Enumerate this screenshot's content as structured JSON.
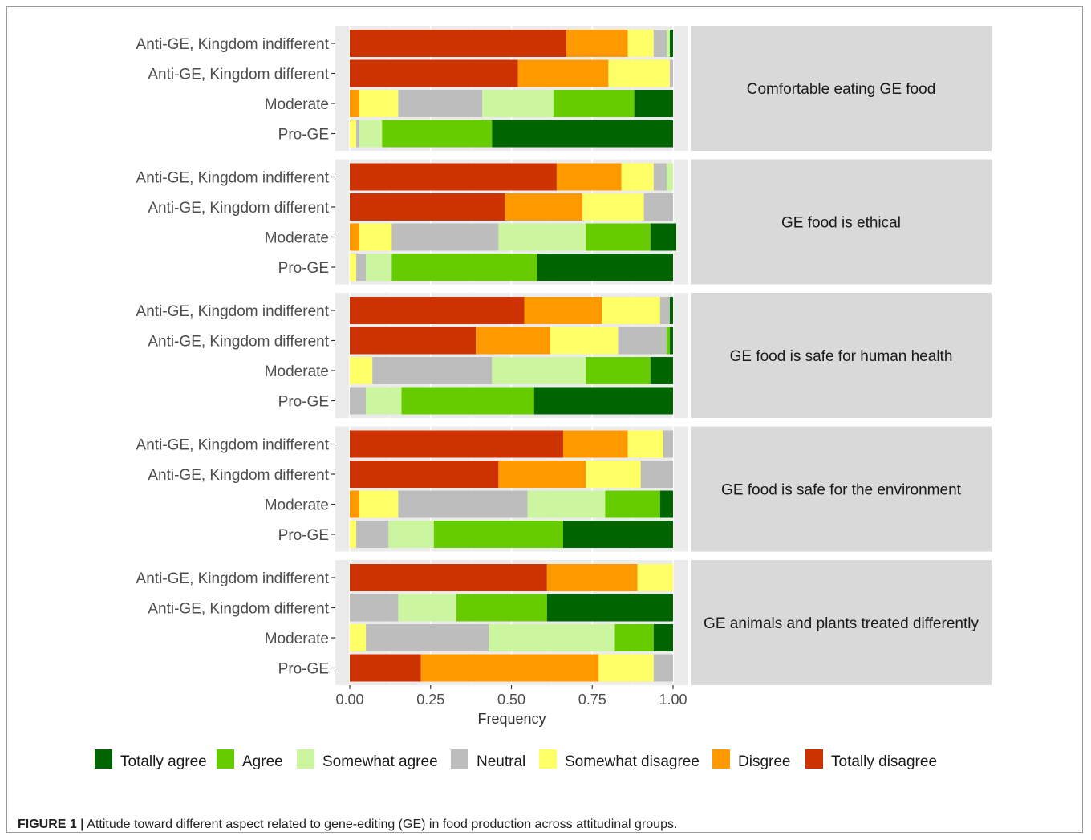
{
  "caption": {
    "label": "FIGURE 1 |",
    "text": "Attitude toward different aspect related to gene-editing (GE) in food production across attitudinal groups."
  },
  "chart_data": {
    "type": "bar",
    "orientation": "horizontal",
    "stacked": true,
    "xlabel": "Frequency",
    "xlim": [
      0,
      1
    ],
    "xticks": [
      "0.00",
      "0.25",
      "0.50",
      "0.75",
      "1.00"
    ],
    "grid": true,
    "legend_position": "bottom",
    "groups": [
      "Anti-GE, Kingdom indifferent",
      "Anti-GE, Kingdom different",
      "Moderate",
      "Pro-GE"
    ],
    "response_levels": [
      "Totally agree",
      "Agree",
      "Somewhat agree",
      "Neutral",
      "Somewhat disagree",
      "Disgree",
      "Totally disagree"
    ],
    "colors": {
      "Totally agree": "#006400",
      "Agree": "#66cc00",
      "Somewhat agree": "#ccf5a0",
      "Neutral": "#bdbdbd",
      "Somewhat disagree": "#ffff66",
      "Disgree": "#ff9900",
      "Totally disagree": "#cc3300"
    },
    "stack_order": [
      "Totally disagree",
      "Disgree",
      "Somewhat disagree",
      "Neutral",
      "Somewhat agree",
      "Agree",
      "Totally agree"
    ],
    "panels": [
      {
        "title": "Comfortable eating GE food",
        "bars": [
          {
            "group": "Anti-GE, Kingdom indifferent",
            "values": [
              0.67,
              0.19,
              0.08,
              0.04,
              0.01,
              0.0,
              0.01
            ]
          },
          {
            "group": "Anti-GE, Kingdom different",
            "values": [
              0.52,
              0.28,
              0.19,
              0.01,
              0.0,
              0.0,
              0.0
            ]
          },
          {
            "group": "Moderate",
            "values": [
              0.0,
              0.03,
              0.12,
              0.26,
              0.22,
              0.25,
              0.12
            ]
          },
          {
            "group": "Pro-GE",
            "values": [
              0.0,
              0.0,
              0.02,
              0.01,
              0.07,
              0.34,
              0.56
            ]
          }
        ]
      },
      {
        "title": "GE food is ethical",
        "bars": [
          {
            "group": "Anti-GE, Kingdom indifferent",
            "values": [
              0.64,
              0.2,
              0.1,
              0.04,
              0.02,
              0.0,
              0.0
            ]
          },
          {
            "group": "Anti-GE, Kingdom different",
            "values": [
              0.48,
              0.24,
              0.19,
              0.09,
              0.0,
              0.0,
              0.0
            ]
          },
          {
            "group": "Moderate",
            "values": [
              0.0,
              0.03,
              0.1,
              0.33,
              0.27,
              0.2,
              0.08
            ]
          },
          {
            "group": "Pro-GE",
            "values": [
              0.0,
              0.0,
              0.02,
              0.03,
              0.08,
              0.45,
              0.42
            ]
          }
        ]
      },
      {
        "title": "GE food is safe for human health",
        "bars": [
          {
            "group": "Anti-GE, Kingdom indifferent",
            "values": [
              0.54,
              0.24,
              0.18,
              0.03,
              0.0,
              0.0,
              0.01
            ]
          },
          {
            "group": "Anti-GE, Kingdom different",
            "values": [
              0.39,
              0.23,
              0.21,
              0.15,
              0.0,
              0.01,
              0.01
            ]
          },
          {
            "group": "Moderate",
            "values": [
              0.0,
              0.0,
              0.07,
              0.37,
              0.29,
              0.2,
              0.07
            ]
          },
          {
            "group": "Pro-GE",
            "values": [
              0.0,
              0.0,
              0.0,
              0.05,
              0.11,
              0.41,
              0.43
            ]
          }
        ]
      },
      {
        "title": "GE food is safe for the environment",
        "bars": [
          {
            "group": "Anti-GE, Kingdom indifferent",
            "values": [
              0.66,
              0.2,
              0.11,
              0.03,
              0.0,
              0.0,
              0.0
            ]
          },
          {
            "group": "Anti-GE, Kingdom different",
            "values": [
              0.46,
              0.27,
              0.17,
              0.1,
              0.0,
              0.0,
              0.0
            ]
          },
          {
            "group": "Moderate",
            "values": [
              0.0,
              0.03,
              0.12,
              0.4,
              0.24,
              0.17,
              0.04
            ]
          },
          {
            "group": "Pro-GE",
            "values": [
              0.0,
              0.0,
              0.02,
              0.1,
              0.14,
              0.4,
              0.34
            ]
          }
        ]
      },
      {
        "title": "GE animals and plants treated differently",
        "bars": [
          {
            "group": "Anti-GE, Kingdom indifferent",
            "values": [
              0.61,
              0.28,
              0.11,
              0.0,
              0.0,
              0.0,
              0.0
            ]
          },
          {
            "group": "Anti-GE, Kingdom different",
            "values": [
              0.0,
              0.0,
              0.0,
              0.15,
              0.18,
              0.28,
              0.39
            ]
          },
          {
            "group": "Moderate",
            "values": [
              0.0,
              0.0,
              0.05,
              0.38,
              0.39,
              0.12,
              0.06
            ]
          },
          {
            "group": "Pro-GE",
            "values": [
              0.22,
              0.55,
              0.17,
              0.06,
              0.0,
              0.0,
              0.0
            ]
          }
        ]
      }
    ]
  }
}
